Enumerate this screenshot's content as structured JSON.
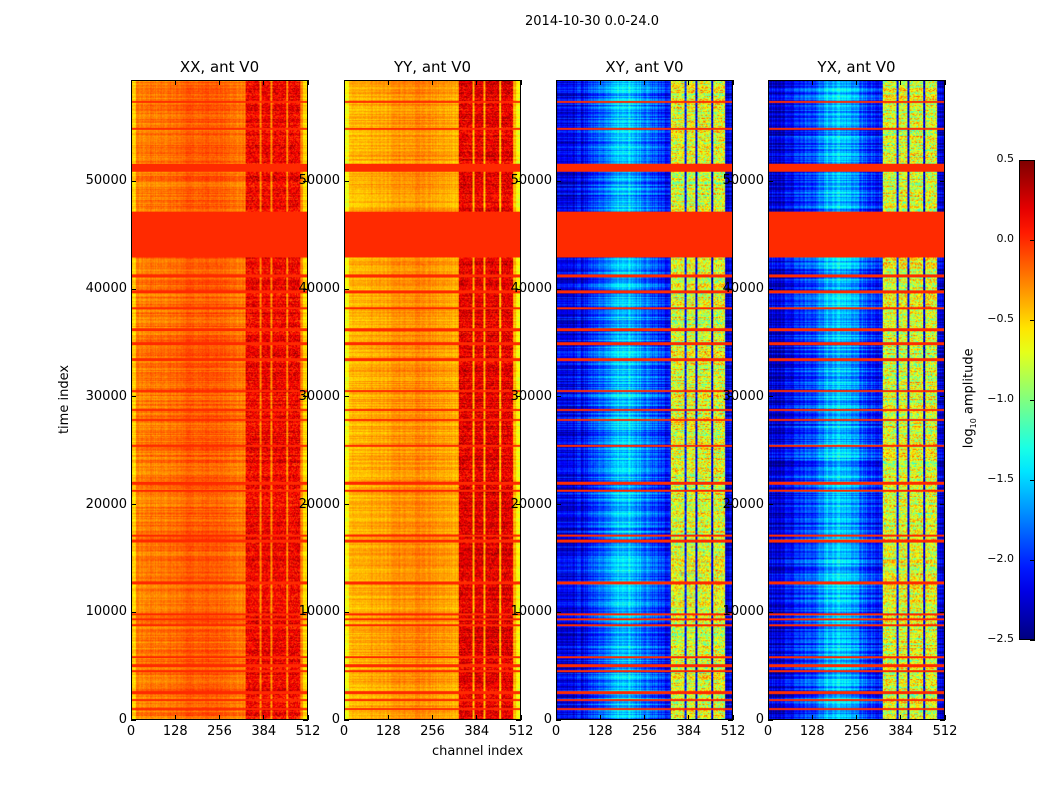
{
  "chart_data": {
    "type": "heatmap",
    "suptitle": "2014-10-30 0.0-24.0",
    "xlabel": "channel index",
    "ylabel": "time index",
    "xlim": [
      0,
      512
    ],
    "ylim": [
      0,
      59400
    ],
    "xticks": [
      0,
      128,
      256,
      384,
      512
    ],
    "yticks": [
      0,
      10000,
      20000,
      30000,
      40000,
      50000
    ],
    "panels": [
      {
        "title": "XX, ant V0",
        "base": -0.25,
        "hot_band": 0.15
      },
      {
        "title": "YY, ant V0",
        "base": -0.4,
        "hot_band": 0.2
      },
      {
        "title": "XY, ant V0",
        "base": -2.2,
        "hot_band": -0.7
      },
      {
        "title": "YX, ant V0",
        "base": -2.2,
        "hot_band": -0.7
      }
    ],
    "hot_channels": [
      330,
      490
    ],
    "flagged_bands": [
      [
        43000,
        47300
      ],
      [
        51000,
        51700
      ]
    ],
    "flagged_lines": [
      1000,
      1800,
      2500,
      4500,
      5000,
      5800,
      8800,
      9300,
      9800,
      12700,
      16600,
      17100,
      21300,
      22000,
      25500,
      27900,
      28800,
      30600,
      33500,
      35000,
      36300,
      38300,
      39800,
      41300,
      55000,
      57500
    ],
    "flag_value": 0.0,
    "colorbar": {
      "label": "log10 amplitude",
      "label_main": "log",
      "label_sub": "10",
      "label_rest": " amplitude",
      "range": [
        -2.5,
        0.5
      ],
      "ticks": [
        "0.5",
        "0.0",
        "−0.5",
        "−1.0",
        "−1.5",
        "−2.0",
        "−2.5"
      ],
      "colormap": "jet"
    }
  }
}
